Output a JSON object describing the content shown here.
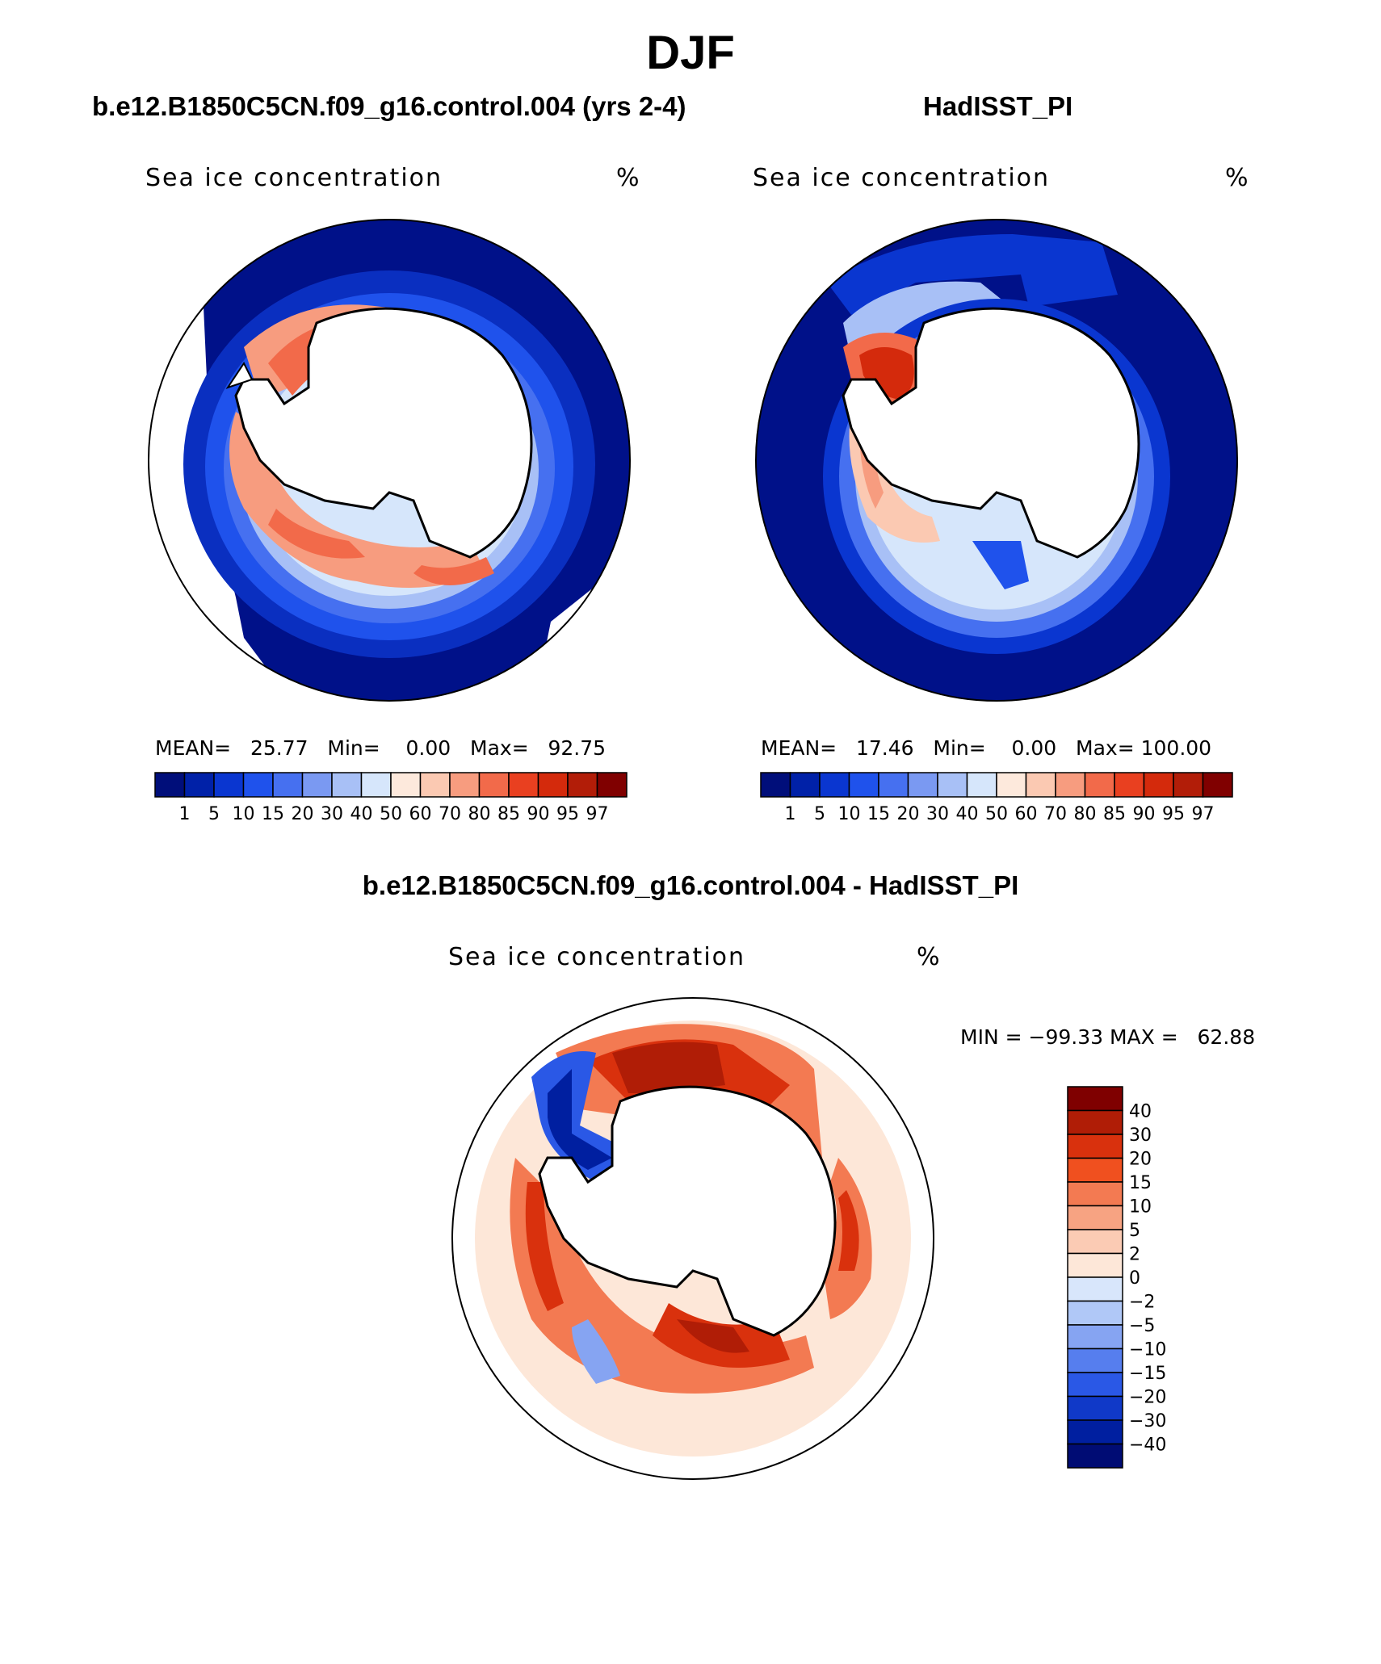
{
  "title": "DJF",
  "panels": [
    {
      "id": "model",
      "subtitle": "b.e12.B1850C5CN.f09_g16.control.004 (yrs 2-4)",
      "variable": "Sea ice concentration",
      "units": "%",
      "stats": {
        "mean_label": "MEAN=",
        "mean": "25.77",
        "min_label": "Min=",
        "min": "0.00",
        "max_label": "Max=",
        "max": "92.75"
      }
    },
    {
      "id": "obs",
      "subtitle": "HadISST_PI",
      "variable": "Sea ice concentration",
      "units": "%",
      "stats": {
        "mean_label": "MEAN=",
        "mean": "17.46",
        "min_label": "Min=",
        "min": "0.00",
        "max_label": "Max=",
        "max": "100.00"
      }
    },
    {
      "id": "diff",
      "subtitle": "b.e12.B1850C5CN.f09_g16.control.004 - HadISST_PI",
      "variable": "Sea ice concentration",
      "units": "%",
      "stats": {
        "min_label": "MIN =",
        "min": "−99.33",
        "max_label": "MAX =",
        "max": "62.88"
      }
    }
  ],
  "colorbar_abs": {
    "levels": [
      "1",
      "5",
      "10",
      "15",
      "20",
      "30",
      "40",
      "50",
      "60",
      "70",
      "80",
      "85",
      "90",
      "95",
      "97"
    ],
    "colors": [
      "#000e7a",
      "#0021a8",
      "#0a36d0",
      "#1f52ec",
      "#4670f0",
      "#7a99f2",
      "#a8c0f6",
      "#d6e6fb",
      "#fde9dc",
      "#fbc9b2",
      "#f79c7f",
      "#f26a4a",
      "#e94020",
      "#d42a0c",
      "#b21d08",
      "#800000"
    ]
  },
  "colorbar_diff": {
    "levels": [
      "40",
      "30",
      "20",
      "15",
      "10",
      "5",
      "2",
      "0",
      "−2",
      "−5",
      "−10",
      "−15",
      "−20",
      "−30",
      "−40"
    ],
    "colors": [
      "#7f0000",
      "#b01d06",
      "#d9310d",
      "#f0501f",
      "#f37a52",
      "#f7a382",
      "#fbcbb4",
      "#fde7d8",
      "#d8e6fb",
      "#b0c8f7",
      "#86a4f2",
      "#567eee",
      "#2a58e6",
      "#1039c8",
      "#001fa0",
      "#000c74"
    ]
  },
  "map_colors": {
    "ocean_deep_blue": "#001189",
    "land": "#ffffff",
    "coast": "#000000"
  }
}
